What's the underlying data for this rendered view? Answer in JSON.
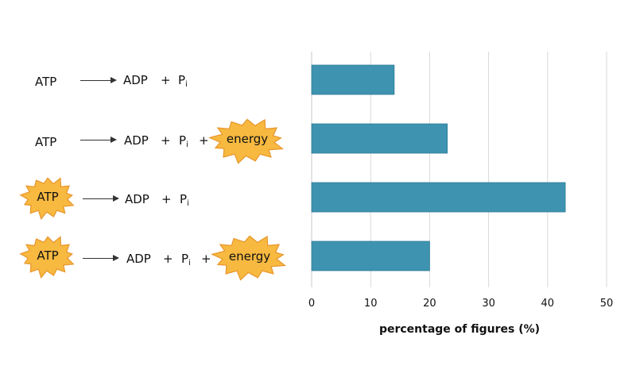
{
  "chart_data": {
    "type": "bar",
    "orientation": "horizontal",
    "categories": [
      "ATP → ADP + Pi",
      "ATP → ADP + Pi + energy",
      "ATP (energy burst) → ADP + Pi",
      "ATP (energy burst) → ADP + Pi + energy"
    ],
    "values": [
      14,
      23,
      43,
      20
    ],
    "xlabel": "percentage of figures (%)",
    "xlim": [
      0,
      50
    ],
    "xticks": [
      0,
      10,
      20,
      30,
      40,
      50
    ],
    "grid": true,
    "bar_color": "#3d93b0"
  },
  "labels": {
    "atp": "ATP",
    "adp": "ADP",
    "plus": "+",
    "p": "P",
    "sub_i": "i",
    "energy": "energy"
  },
  "colors": {
    "burst_fill": "#f7b940",
    "burst_stroke": "#e8952b"
  }
}
